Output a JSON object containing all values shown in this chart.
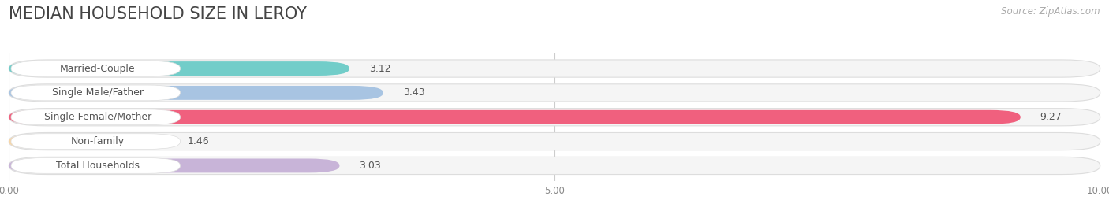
{
  "title": "MEDIAN HOUSEHOLD SIZE IN LEROY",
  "source": "Source: ZipAtlas.com",
  "categories": [
    "Married-Couple",
    "Single Male/Father",
    "Single Female/Mother",
    "Non-family",
    "Total Households"
  ],
  "values": [
    3.12,
    3.43,
    9.27,
    1.46,
    3.03
  ],
  "bar_colors": [
    "#72cdc9",
    "#a8c4e2",
    "#f0607e",
    "#f7d6a8",
    "#c8b4d8"
  ],
  "xlim": [
    0,
    10.0
  ],
  "xticks": [
    0.0,
    5.0,
    10.0
  ],
  "xtick_labels": [
    "0.00",
    "5.00",
    "10.00"
  ],
  "background_color": "#ffffff",
  "bar_bg_color": "#f5f5f5",
  "title_fontsize": 15,
  "label_fontsize": 9,
  "value_fontsize": 9,
  "source_fontsize": 8.5
}
